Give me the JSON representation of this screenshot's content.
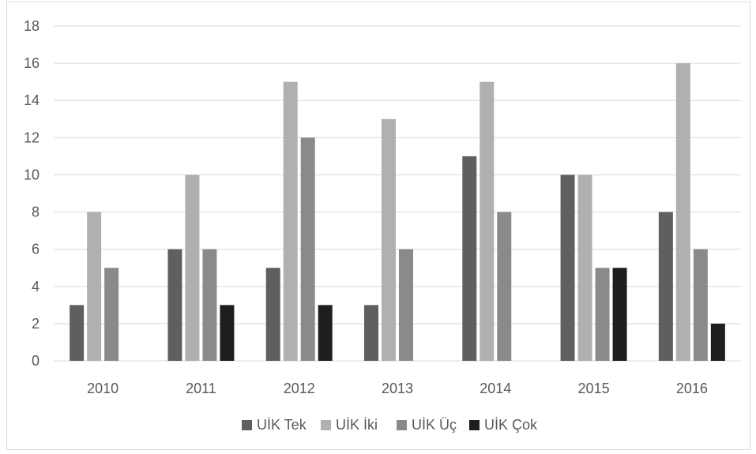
{
  "chart_data": {
    "type": "bar",
    "categories": [
      "2010",
      "2011",
      "2012",
      "2013",
      "2014",
      "2015",
      "2016"
    ],
    "series": [
      {
        "name": "UİK Tek",
        "color": "#5f5f5f",
        "values": [
          3,
          6,
          5,
          3,
          11,
          10,
          8
        ]
      },
      {
        "name": "UİK İki",
        "color": "#b0b0b0",
        "values": [
          8,
          10,
          15,
          13,
          15,
          10,
          16
        ]
      },
      {
        "name": "UİK Üç",
        "color": "#8a8a8a",
        "values": [
          5,
          6,
          12,
          6,
          8,
          5,
          6
        ]
      },
      {
        "name": "UİK Çok",
        "color": "#1e1e1e",
        "values": [
          0,
          3,
          3,
          0,
          0,
          5,
          2
        ]
      }
    ],
    "yticks": [
      "0",
      "2",
      "4",
      "6",
      "8",
      "10",
      "12",
      "14",
      "16",
      "18"
    ],
    "ylim": [
      0,
      18
    ],
    "grid": true,
    "legend_position": "bottom",
    "title": "",
    "xlabel": "",
    "ylabel": ""
  }
}
